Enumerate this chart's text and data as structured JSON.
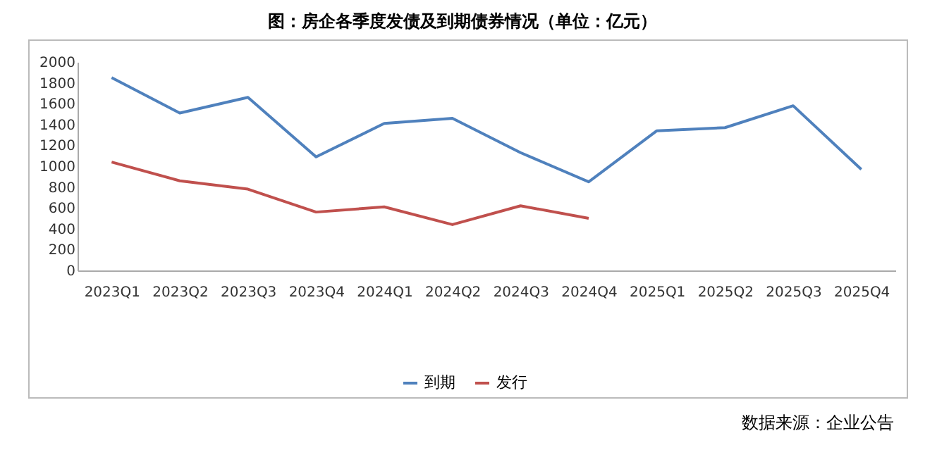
{
  "chart_data": {
    "type": "line",
    "title": "图：房企各季度发债及到期债券情况（单位：亿元）",
    "categories": [
      "2023Q1",
      "2023Q2",
      "2023Q3",
      "2023Q4",
      "2024Q1",
      "2024Q2",
      "2024Q3",
      "2024Q4",
      "2025Q1",
      "2025Q2",
      "2025Q3",
      "2025Q4"
    ],
    "series": [
      {
        "name": "到期",
        "color": "#4f81bd",
        "values": [
          1850,
          1510,
          1660,
          1090,
          1410,
          1460,
          1130,
          850,
          1340,
          1370,
          1580,
          970
        ]
      },
      {
        "name": "发行",
        "color": "#c0504d",
        "values": [
          1040,
          860,
          780,
          560,
          610,
          440,
          620,
          500,
          null,
          null,
          null,
          null
        ]
      }
    ],
    "ylim": [
      0,
      2000
    ],
    "yticks": [
      0,
      200,
      400,
      600,
      800,
      1000,
      1200,
      1400,
      1600,
      1800,
      2000
    ],
    "grid": false,
    "legend": "bottom",
    "marker": "none",
    "line_style": "solid",
    "annotations": [
      "数据来源：企业公告"
    ]
  }
}
